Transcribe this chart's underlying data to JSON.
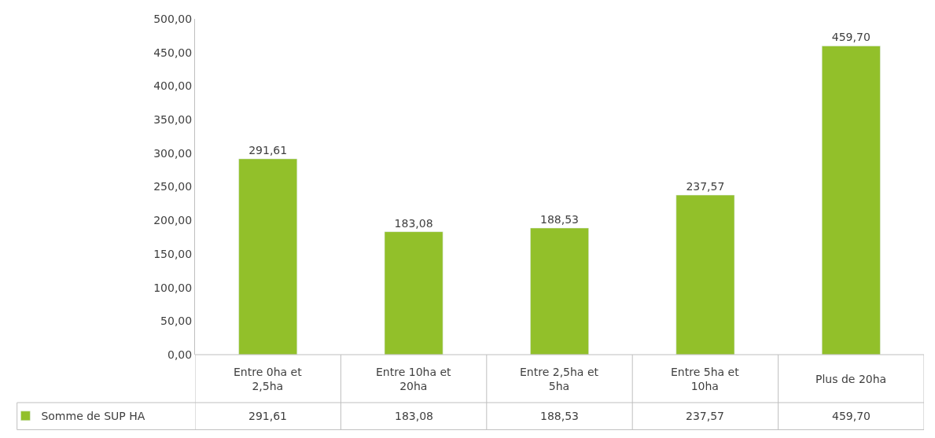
{
  "chart_data": {
    "type": "bar",
    "categories": [
      "Entre 0ha et 2,5ha",
      "Entre 10ha et 20ha",
      "Entre 2,5ha et 5ha",
      "Entre 5ha et 10ha",
      "Plus de 20ha"
    ],
    "series": [
      {
        "name": "Somme de SUP HA",
        "color": "#92c02a",
        "values": [
          291.61,
          183.08,
          188.53,
          237.57,
          459.7
        ],
        "value_labels": [
          "291,61",
          "183,08",
          "188,53",
          "237,57",
          "459,70"
        ]
      }
    ],
    "ylim": [
      0,
      500
    ],
    "yticks": [
      {
        "value": 0,
        "label": "0,00"
      },
      {
        "value": 50,
        "label": "50,00"
      },
      {
        "value": 100,
        "label": "100,00"
      },
      {
        "value": 150,
        "label": "150,00"
      },
      {
        "value": 200,
        "label": "200,00"
      },
      {
        "value": 250,
        "label": "250,00"
      },
      {
        "value": 300,
        "label": "300,00"
      },
      {
        "value": 350,
        "label": "350,00"
      },
      {
        "value": 400,
        "label": "400,00"
      },
      {
        "value": 450,
        "label": "450,00"
      },
      {
        "value": 500,
        "label": "500,00"
      }
    ],
    "legend": "bottom"
  }
}
